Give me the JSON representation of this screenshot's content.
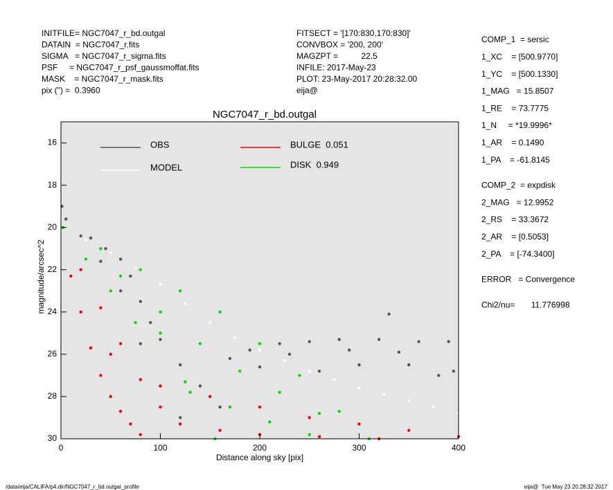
{
  "header_left": [
    "INITFILE= NGC7047_r_bd.outgal",
    "DATAIN  = NGC7047_r.fits",
    "SIGMA   = NGC7047_r_sigma.fits",
    "PSF     = NGC7047_r_psf_gaussmoffat.fits",
    "MASK    = NGC7047_r_mask.fits",
    "pix (\") =  0.3960"
  ],
  "header_middle": [
    "FITSECT = '[170:830,170:830]'",
    "CONVBOX = '200, 200'",
    "MAGZPT =          22.5",
    "INFILE: 2017-May-23",
    "PLOT: 23-May-2017 20:28:32.00",
    "eija@"
  ],
  "fit_panel": [
    [
      "COMP_1  = sersic",
      "1_XC    = [500.9770]",
      "1_YC    = [500.1330]",
      "1_MAG   = 15.8507",
      "1_RE    = 73.7775",
      "1_N     = *19.9996*",
      "1_AR    = 0.1490",
      "1_PA    = -61.8145"
    ],
    [
      "COMP_2  = expdisk",
      "2_MAG   = 12.9952",
      "2_RS    = 33.3672",
      "2_AR    = [0.5053]",
      "2_PA    = [-74.3400]"
    ],
    [
      "ERROR   = Convergence"
    ],
    [
      "Chi2/nu=       11.776998"
    ]
  ],
  "footer": {
    "path": "/data/eija/CALIFA/p4.dir/NGC7047_r_bd.outgal_profile",
    "stamp": "eija@  Tue May 23 20:28:32 2017"
  },
  "chart_data": {
    "type": "scatter",
    "title": "NGC7047_r_bd.outgal",
    "x_label": "Distance along sky [pix]",
    "y_label": "magnitude/arcsec^2",
    "xlim": [
      0,
      400
    ],
    "ylim": [
      30,
      15
    ],
    "xticks": [
      0,
      100,
      200,
      300,
      400
    ],
    "yticks": [
      16,
      18,
      20,
      22,
      24,
      26,
      28,
      30
    ],
    "background": "#e5e5e5",
    "series": [
      {
        "name": "OBS",
        "color": "#555555",
        "x": [
          1,
          5,
          20,
          30,
          45,
          60,
          70,
          80,
          90,
          100,
          120,
          140,
          160,
          190,
          220,
          250,
          280,
          320,
          360,
          390,
          330,
          40,
          60,
          80,
          100,
          120,
          200,
          260,
          300,
          350,
          380,
          170,
          230,
          290,
          340,
          395
        ],
        "y": [
          19,
          19.6,
          20.4,
          20.5,
          21,
          21.5,
          22.3,
          23.5,
          24.5,
          25.3,
          26.5,
          27.5,
          28.5,
          25.8,
          25.5,
          25.4,
          25.3,
          25.3,
          25.4,
          25.4,
          24.1,
          21.6,
          23,
          25.5,
          27.5,
          29,
          26.6,
          26.8,
          26.5,
          26.5,
          27,
          26.2,
          26,
          25.8,
          25.9,
          26.8
        ]
      },
      {
        "name": "MODEL",
        "color": "#ffffff",
        "x": [
          2,
          25,
          50,
          75,
          100,
          125,
          150,
          175,
          200,
          225,
          250,
          275,
          300,
          325,
          350,
          375,
          400
        ],
        "y": [
          20,
          20.6,
          21.2,
          21.9,
          22.7,
          23.6,
          24.5,
          25.2,
          25.8,
          26.3,
          26.8,
          27.2,
          27.6,
          27.9,
          28.2,
          28.5,
          28.8
        ]
      },
      {
        "name": "BULGE  0.051",
        "color": "#ff0000",
        "x": [
          2,
          10,
          20,
          30,
          40,
          50,
          60,
          70,
          80,
          20,
          40,
          60,
          80,
          100,
          50,
          100,
          150,
          200,
          250,
          300,
          350,
          400,
          120,
          160,
          200,
          260,
          320
        ],
        "y": [
          20,
          22.3,
          24,
          25.7,
          27,
          28,
          28.7,
          29.3,
          29.8,
          22,
          23.8,
          25.5,
          27.2,
          28.5,
          26,
          27.5,
          28,
          28.5,
          29,
          29.3,
          29.6,
          29.9,
          29.3,
          29.6,
          29.8,
          29.9,
          30
        ]
      },
      {
        "name": "DISK  0.949",
        "color": "#00dd00",
        "x": [
          2,
          40,
          80,
          120,
          160,
          200,
          240,
          280,
          310,
          25,
          50,
          75,
          100,
          125,
          155,
          60,
          100,
          140,
          180,
          220,
          260,
          130,
          170,
          210,
          250
        ],
        "y": [
          20,
          21,
          22,
          23,
          24,
          25.5,
          27,
          28.7,
          30,
          21.5,
          23,
          24.5,
          25,
          27.3,
          30,
          22.3,
          24,
          25.5,
          26.8,
          27.8,
          28.8,
          27.8,
          28.5,
          29.2,
          29.8
        ]
      }
    ]
  }
}
